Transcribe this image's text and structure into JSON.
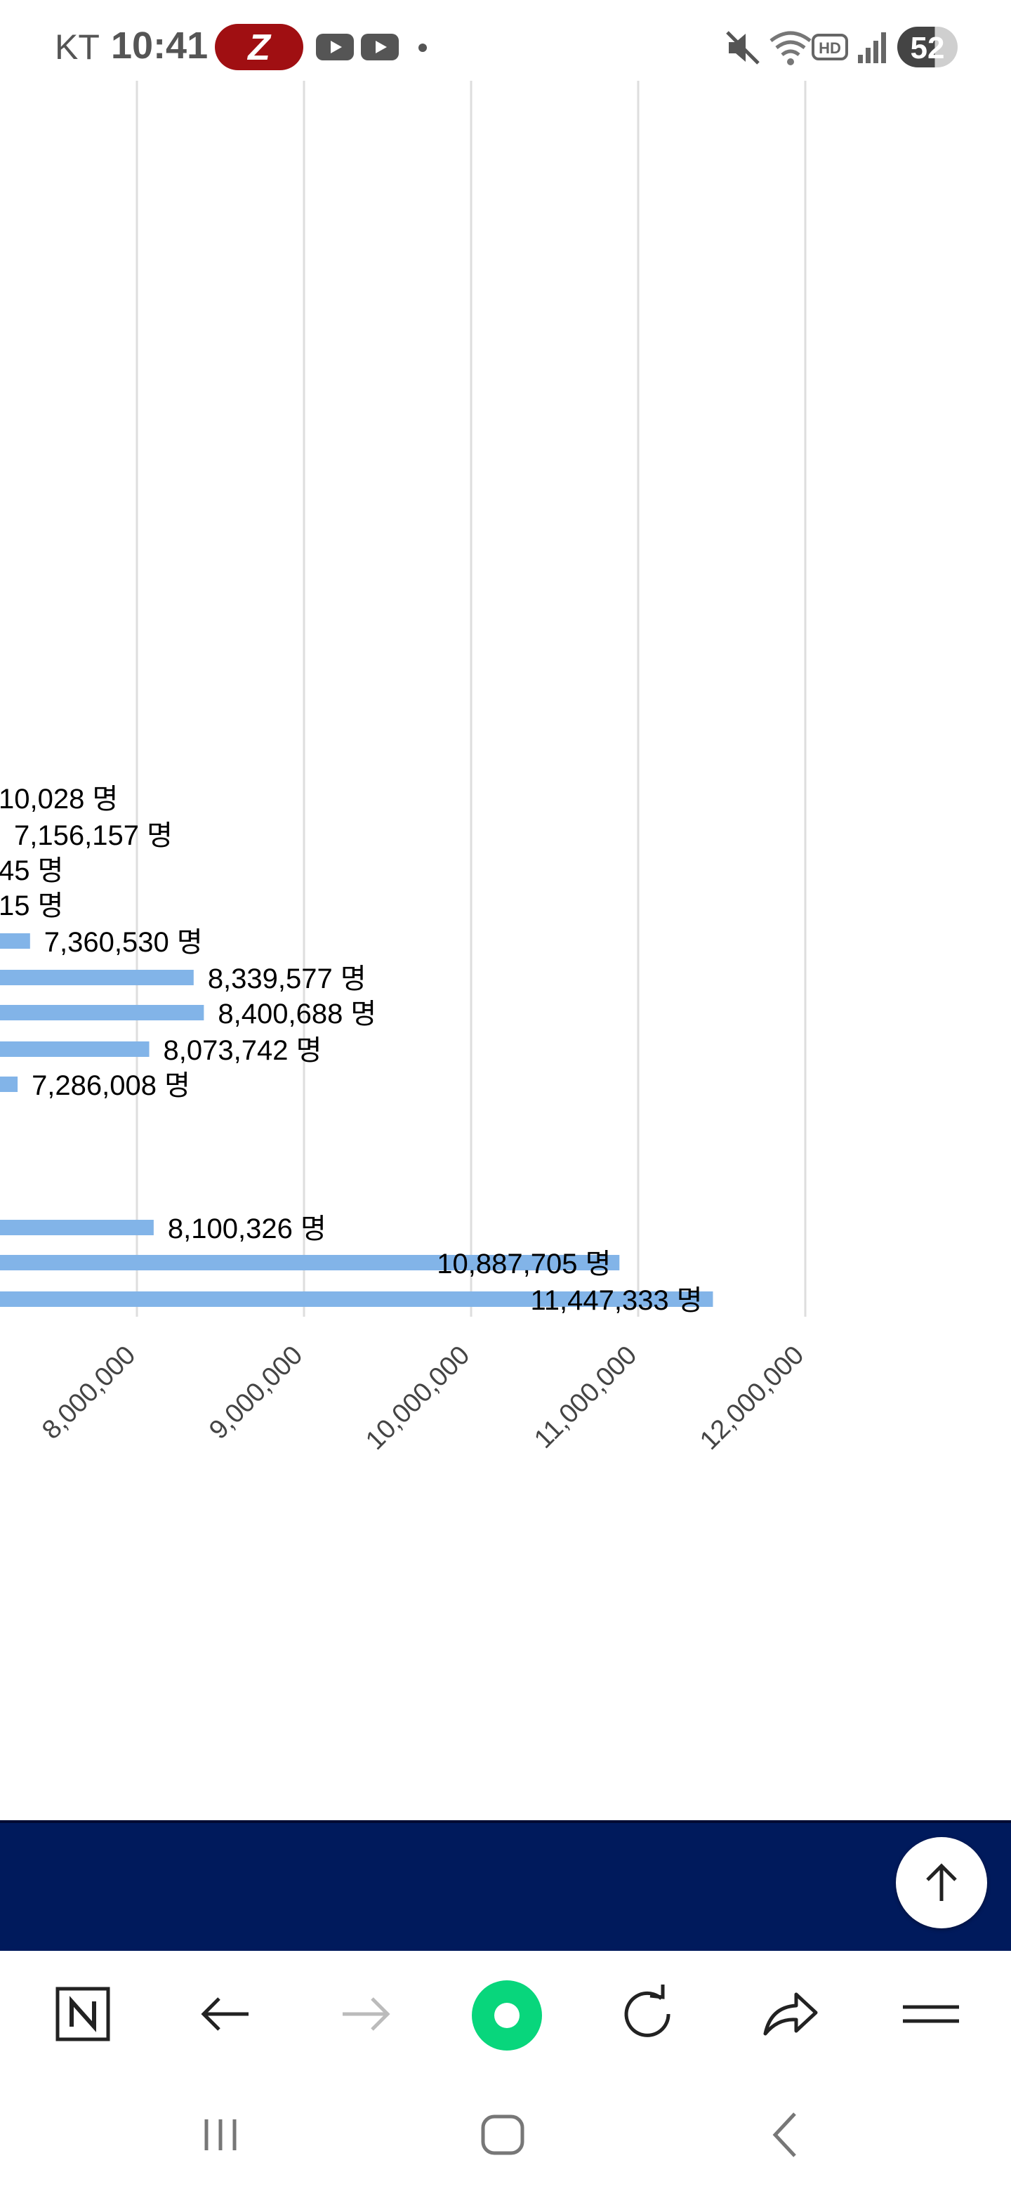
{
  "status_bar": {
    "carrier": "KT",
    "time": "10:41",
    "z_badge": "Z",
    "battery": "52",
    "icons": [
      "z-app-icon",
      "youtube-icon",
      "youtube-icon",
      "dot-icon",
      "mute-icon",
      "wifi-icon",
      "hd-icon",
      "signal-icon",
      "battery-icon"
    ]
  },
  "chart_data": {
    "type": "bar",
    "orientation": "horizontal",
    "unit_suffix": " 명",
    "label_color": "#000000",
    "bar_color": "#82b4e8",
    "grid": true,
    "xlim_visible": [
      7200000,
      12000000
    ],
    "x_ticks": [
      8000000,
      9000000,
      10000000,
      11000000,
      12000000
    ],
    "x_tick_labels": [
      "8,000,000",
      "9,000,000",
      "10,000,000",
      "11,000,000",
      "12,000,000"
    ],
    "rows": [
      {
        "value_label": "10,028 명",
        "value": null
      },
      {
        "value_label": "7,156,157 명",
        "value": 7156157
      },
      {
        "value_label": "45 명",
        "value": null
      },
      {
        "value_label": "15 명",
        "value": null
      },
      {
        "value_label": "7,360,530 명",
        "value": 7360530
      },
      {
        "value_label": "8,339,577 명",
        "value": 8339577
      },
      {
        "value_label": "8,400,688 명",
        "value": 8400688
      },
      {
        "value_label": "8,073,742 명",
        "value": 8073742
      },
      {
        "value_label": "7,286,008 명",
        "value": 7286008
      },
      {
        "value_label": "",
        "value": null
      },
      {
        "value_label": "8,100,326 명",
        "value": 8100326
      },
      {
        "value_label": "10,887,705 명",
        "value": 10887705
      },
      {
        "value_label": "11,447,333 명",
        "value": 11447333
      }
    ]
  },
  "footer": {
    "background": "#001a5c",
    "scroll_top_icon": "arrow-up-icon"
  },
  "browser_toolbar": {
    "buttons": [
      "naver-home-icon",
      "back-arrow-icon",
      "forward-arrow-icon",
      "green-dot-icon",
      "refresh-icon",
      "share-icon",
      "menu-icon"
    ]
  },
  "nav_bar": {
    "buttons": [
      "recent-apps-icon",
      "home-icon",
      "back-icon"
    ]
  }
}
